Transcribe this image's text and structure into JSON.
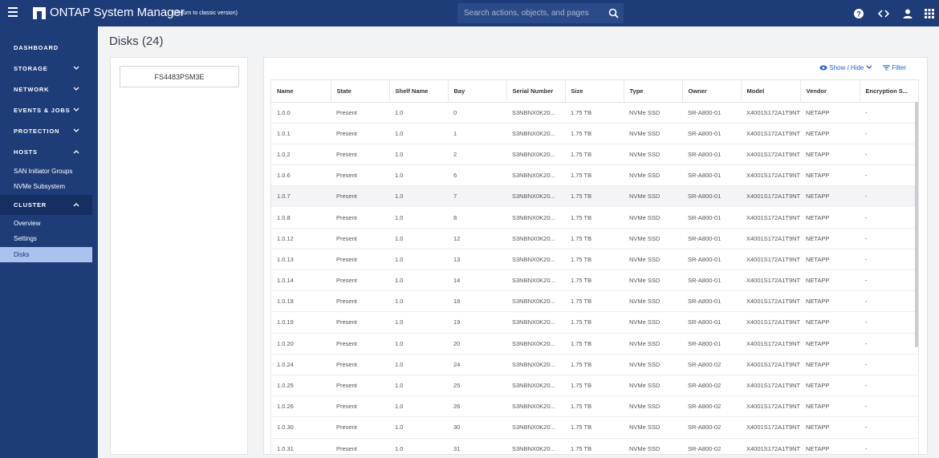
{
  "header": {
    "app_title": "ONTAP System Manager",
    "classic_link": "(Return to classic version)",
    "search_placeholder": "Search actions, objects, and pages"
  },
  "sidebar": {
    "dashboard": "DASHBOARD",
    "storage": "STORAGE",
    "network": "NETWORK",
    "events_jobs": "EVENTS & JOBS",
    "protection": "PROTECTION",
    "hosts": "HOSTS",
    "hosts_items": [
      "SAN Initiator Groups",
      "NVMe Subsystem"
    ],
    "cluster": "CLUSTER",
    "cluster_items": [
      "Overview",
      "Settings",
      "Disks"
    ]
  },
  "page": {
    "title": "Disks (24)",
    "node": "FS4483PSM3E",
    "show_hide": "Show / Hide",
    "filter": "Filter"
  },
  "table": {
    "columns": [
      "Name",
      "State",
      "Shelf Name",
      "Bay",
      "Serial Number",
      "Size",
      "Type",
      "Owner",
      "Model",
      "Vendor",
      "Encryption S..."
    ],
    "rows": [
      [
        "1.0.0",
        "Present",
        "1.0",
        "0",
        "S3NBNX0K20...",
        "1.75 TB",
        "NVMe SSD",
        "SR-A800-01",
        "X4001S172A1T9NT",
        "NETAPP",
        "-"
      ],
      [
        "1.0.1",
        "Present",
        "1.0",
        "1",
        "S3NBNX0K20...",
        "1.75 TB",
        "NVMe SSD",
        "SR-A800-01",
        "X4001S172A1T9NT",
        "NETAPP",
        "-"
      ],
      [
        "1.0.2",
        "Present",
        "1.0",
        "2",
        "S3NBNX0K20...",
        "1.75 TB",
        "NVMe SSD",
        "SR-A800-01",
        "X4001S172A1T9NT",
        "NETAPP",
        "-"
      ],
      [
        "1.0.6",
        "Present",
        "1.0",
        "6",
        "S3NBNX0K20...",
        "1.75 TB",
        "NVMe SSD",
        "SR-A800-01",
        "X4001S172A1T9NT",
        "NETAPP",
        "-"
      ],
      [
        "1.0.7",
        "Present",
        "1.0",
        "7",
        "S3NBNX0K20...",
        "1.75 TB",
        "NVMe SSD",
        "SR-A800-01",
        "X4001S172A1T9NT",
        "NETAPP",
        "-"
      ],
      [
        "1.0.8",
        "Present",
        "1.0",
        "8",
        "S3NBNX0K20...",
        "1.75 TB",
        "NVMe SSD",
        "SR-A800-01",
        "X4001S172A1T9NT",
        "NETAPP",
        "-"
      ],
      [
        "1.0.12",
        "Present",
        "1.0",
        "12",
        "S3NBNX0K20...",
        "1.75 TB",
        "NVMe SSD",
        "SR-A800-01",
        "X4001S172A1T9NT",
        "NETAPP",
        "-"
      ],
      [
        "1.0.13",
        "Present",
        "1.0",
        "13",
        "S3NBNX0K20...",
        "1.75 TB",
        "NVMe SSD",
        "SR-A800-01",
        "X4001S172A1T9NT",
        "NETAPP",
        "-"
      ],
      [
        "1.0.14",
        "Present",
        "1.0",
        "14",
        "S3NBNX0K20...",
        "1.75 TB",
        "NVMe SSD",
        "SR-A800-01",
        "X4001S172A1T9NT",
        "NETAPP",
        "-"
      ],
      [
        "1.0.18",
        "Present",
        "1.0",
        "18",
        "S3NBNX0K20...",
        "1.75 TB",
        "NVMe SSD",
        "SR-A800-01",
        "X4001S172A1T9NT",
        "NETAPP",
        "-"
      ],
      [
        "1.0.19",
        "Present",
        "1.0",
        "19",
        "S3NBNX0K20...",
        "1.75 TB",
        "NVMe SSD",
        "SR-A800-01",
        "X4001S172A1T9NT",
        "NETAPP",
        "-"
      ],
      [
        "1.0.20",
        "Present",
        "1.0",
        "20",
        "S3NBNX0K20...",
        "1.75 TB",
        "NVMe SSD",
        "SR-A800-01",
        "X4001S172A1T9NT",
        "NETAPP",
        "-"
      ],
      [
        "1.0.24",
        "Present",
        "1.0",
        "24",
        "S3NBNX0K20...",
        "1.75 TB",
        "NVMe SSD",
        "SR-A800-02",
        "X4001S172A1T9NT",
        "NETAPP",
        "-"
      ],
      [
        "1.0.25",
        "Present",
        "1.0",
        "25",
        "S3NBNX0K20...",
        "1.75 TB",
        "NVMe SSD",
        "SR-A800-02",
        "X4001S172A1T9NT",
        "NETAPP",
        "-"
      ],
      [
        "1.0.26",
        "Present",
        "1.0",
        "26",
        "S3NBNX0K20...",
        "1.75 TB",
        "NVMe SSD",
        "SR-A800-02",
        "X4001S172A1T9NT",
        "NETAPP",
        "-"
      ],
      [
        "1.0.30",
        "Present",
        "1.0",
        "30",
        "S3NBNX0K20...",
        "1.75 TB",
        "NVMe SSD",
        "SR-A800-02",
        "X4001S172A1T9NT",
        "NETAPP",
        "-"
      ],
      [
        "1.0.31",
        "Present",
        "1.0",
        "31",
        "S3NBNX0K20...",
        "1.75 TB",
        "NVMe SSD",
        "SR-A800-02",
        "X4001S172A1T9NT",
        "NETAPP",
        "-"
      ]
    ]
  },
  "colors": {
    "nav_bg": "#1d3c78",
    "active_item_bg": "#a9c2f0",
    "link": "#2a61c4"
  },
  "icons": [
    "menu-icon",
    "netapp-logo-icon",
    "search-icon",
    "help-icon",
    "code-icon",
    "user-icon",
    "apps-grid-icon",
    "chevron-down-icon",
    "chevron-up-icon",
    "eye-icon",
    "filter-icon"
  ]
}
